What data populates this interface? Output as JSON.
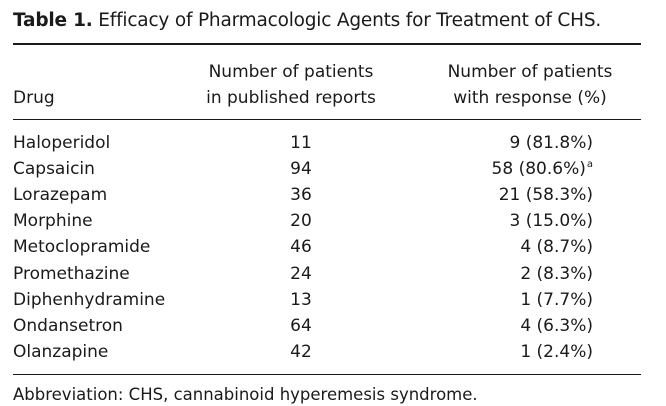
{
  "caption": {
    "label": "Table 1.",
    "text": "Efficacy of Pharmacologic Agents for Treatment of CHS."
  },
  "headers": {
    "drug": "Drug",
    "patients_line1": "Number of patients",
    "patients_line2": "in published reports",
    "response_line1": "Number of patients",
    "response_line2": "with response (%)"
  },
  "rows": [
    {
      "drug": "Haloperidol",
      "patients": "11",
      "response": "9 (81.8%)",
      "sup": ""
    },
    {
      "drug": "Capsaicin",
      "patients": "94",
      "response": "58 (80.6%)",
      "sup": "a"
    },
    {
      "drug": "Lorazepam",
      "patients": "36",
      "response": "21 (58.3%)",
      "sup": ""
    },
    {
      "drug": "Morphine",
      "patients": "20",
      "response": "3 (15.0%)",
      "sup": ""
    },
    {
      "drug": "Metoclopramide",
      "patients": "46",
      "response": "4 (8.7%)",
      "sup": ""
    },
    {
      "drug": "Promethazine",
      "patients": "24",
      "response": "2 (8.3%)",
      "sup": ""
    },
    {
      "drug": "Diphenhydramine",
      "patients": "13",
      "response": "1 (7.7%)",
      "sup": ""
    },
    {
      "drug": "Ondansetron",
      "patients": "64",
      "response": "4 (6.3%)",
      "sup": ""
    },
    {
      "drug": "Olanzapine",
      "patients": "42",
      "response": "1 (2.4%)",
      "sup": ""
    }
  ],
  "footnote": "Abbreviation: CHS, cannabinoid hyperemesis syndrome."
}
